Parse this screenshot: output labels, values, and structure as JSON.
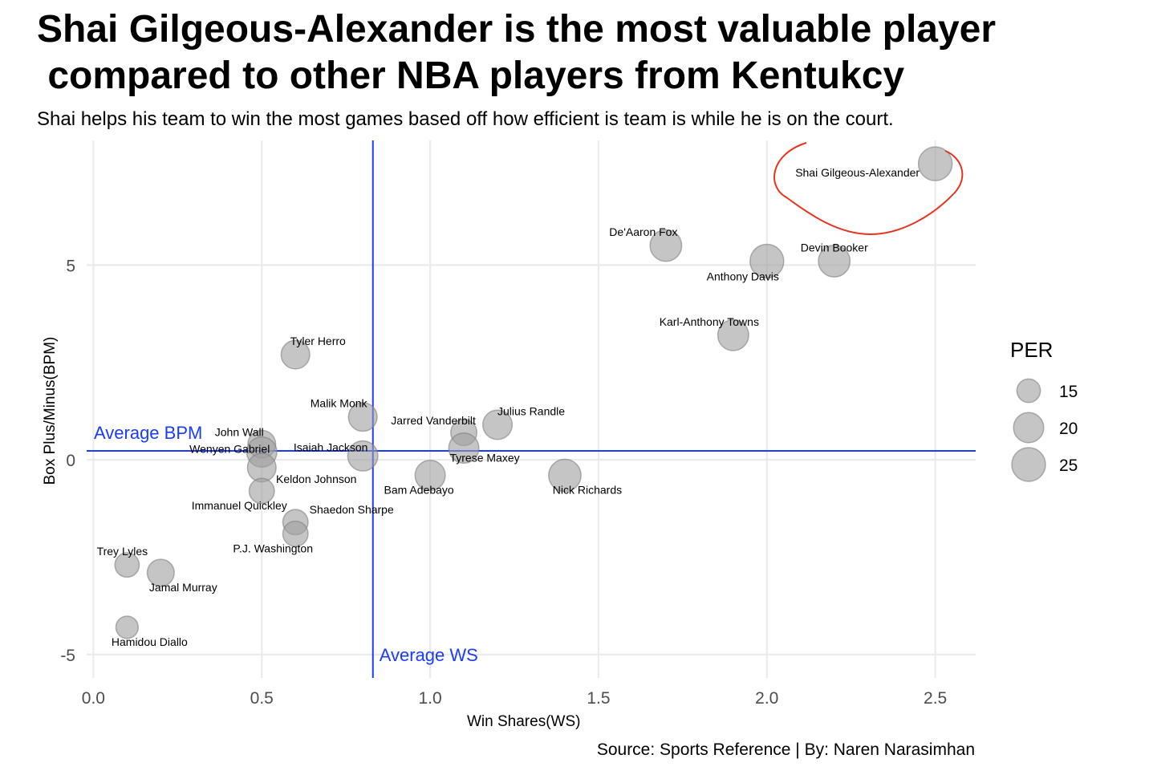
{
  "title_line1": "Shai Gilgeous-Alexander is the most valuable player",
  "title_line2": " compared to other NBA players from Kentukcy",
  "subtitle": "Shai helps his team to win the most games based off how efficient is team is while he is on the court.",
  "caption": "Source: Sports Reference | By: Naren Narasimhan",
  "colors": {
    "point_fill": "#9e9e9e",
    "point_stroke": "#7f7f7f",
    "reference_line": "#1a3cff",
    "highlight": "#e8321e",
    "grid": "#ebebeb"
  },
  "chart_data": {
    "type": "scatter",
    "xlabel": "Win Shares(WS)",
    "ylabel": "Box Plus/Minus(BPM)",
    "xlim": [
      -0.02,
      2.62
    ],
    "ylim": [
      -5.6,
      8.2
    ],
    "x_ticks": [
      0.0,
      0.5,
      1.0,
      1.5,
      2.0,
      2.5
    ],
    "x_tick_labels": [
      "0.0",
      "0.5",
      "1.0",
      "1.5",
      "2.0",
      "2.5"
    ],
    "y_ticks": [
      -5,
      0,
      5
    ],
    "y_tick_labels": [
      "-5",
      "0",
      "5"
    ],
    "grid": true,
    "reference_lines": {
      "average_ws": 0.83,
      "average_ws_label": "Average WS",
      "average_bpm": 0.23,
      "average_bpm_label": "Average BPM"
    },
    "highlight": "Shai Gilgeous-Alexander",
    "size_legend": {
      "title": "PER",
      "values": [
        15,
        20,
        25
      ],
      "labels": [
        "15",
        "20",
        "25"
      ],
      "placement": "right"
    },
    "points": [
      {
        "name": "Shai Gilgeous-Alexander",
        "ws": 2.5,
        "bpm": 7.6,
        "per": 25
      },
      {
        "name": "De'Aaron Fox",
        "ws": 1.7,
        "bpm": 5.5,
        "per": 22
      },
      {
        "name": "Anthony Davis",
        "ws": 2.0,
        "bpm": 5.1,
        "per": 25
      },
      {
        "name": "Devin Booker",
        "ws": 2.2,
        "bpm": 5.1,
        "per": 22
      },
      {
        "name": "Karl-Anthony Towns",
        "ws": 1.9,
        "bpm": 3.2,
        "per": 21
      },
      {
        "name": "Tyler Herro",
        "ws": 0.6,
        "bpm": 2.7,
        "per": 18
      },
      {
        "name": "Malik Monk",
        "ws": 0.8,
        "bpm": 1.1,
        "per": 18
      },
      {
        "name": "Julius Randle",
        "ws": 1.2,
        "bpm": 0.9,
        "per": 19
      },
      {
        "name": "Jarred Vanderbilt",
        "ws": 1.1,
        "bpm": 0.7,
        "per": 15
      },
      {
        "name": "John Wall",
        "ws": 0.5,
        "bpm": 0.4,
        "per": 17
      },
      {
        "name": "Wenyen Gabriel",
        "ws": 0.5,
        "bpm": 0.2,
        "per": 20
      },
      {
        "name": "Isaiah Jackson",
        "ws": 0.8,
        "bpm": 0.1,
        "per": 20
      },
      {
        "name": "Tyrese Maxey",
        "ws": 1.1,
        "bpm": 0.3,
        "per": 20
      },
      {
        "name": "Keldon Johnson",
        "ws": 0.5,
        "bpm": -0.2,
        "per": 18
      },
      {
        "name": "Bam Adebayo",
        "ws": 1.0,
        "bpm": -0.4,
        "per": 20
      },
      {
        "name": "Nick Richards",
        "ws": 1.4,
        "bpm": -0.4,
        "per": 23
      },
      {
        "name": "Immanuel Quickley",
        "ws": 0.5,
        "bpm": -0.8,
        "per": 14
      },
      {
        "name": "Shaedon Sharpe",
        "ws": 0.6,
        "bpm": -1.6,
        "per": 14
      },
      {
        "name": "P.J. Washington",
        "ws": 0.6,
        "bpm": -1.9,
        "per": 14
      },
      {
        "name": "Trey Lyles",
        "ws": 0.1,
        "bpm": -2.7,
        "per": 13
      },
      {
        "name": "Jamal Murray",
        "ws": 0.2,
        "bpm": -2.9,
        "per": 16
      },
      {
        "name": "Hamidou Diallo",
        "ws": 0.1,
        "bpm": -4.3,
        "per": 11
      }
    ]
  }
}
